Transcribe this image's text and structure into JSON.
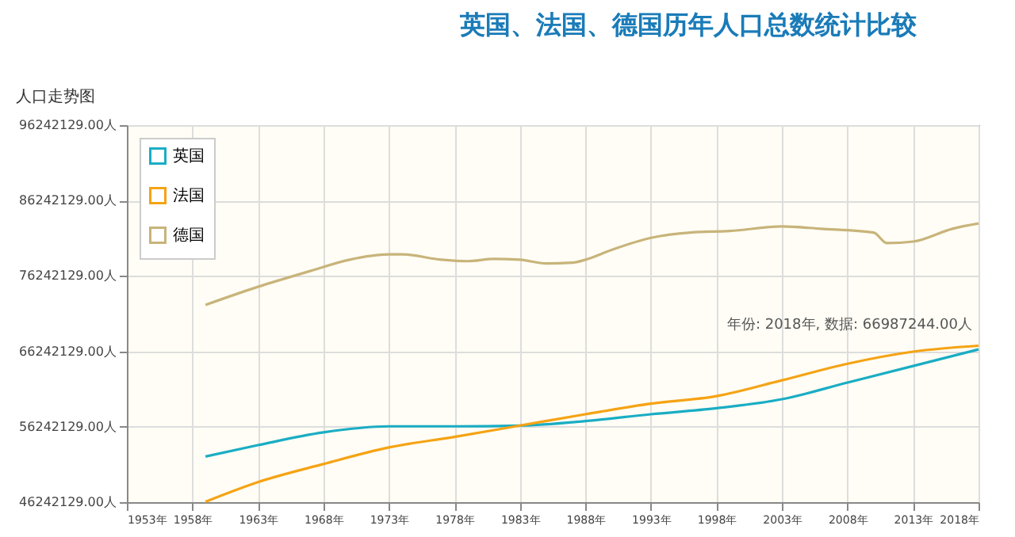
{
  "chart_data": {
    "type": "line",
    "title": "英国、法国、德国历年人口总数统计比较",
    "subtitle": "人口走势图",
    "x": [
      1959,
      1963,
      1968,
      1973,
      1978,
      1983,
      1988,
      1993,
      1998,
      2003,
      2008,
      2013,
      2018
    ],
    "series": [
      {
        "name": "英国",
        "color": "#1aadc4",
        "values": [
          52300000,
          53800000,
          55500000,
          56300000,
          56300000,
          56400000,
          57000000,
          57900000,
          58700000,
          59900000,
          62100000,
          64300000,
          66500000
        ]
      },
      {
        "name": "法国",
        "color": "#f5a314",
        "values": [
          46300000,
          48900000,
          51300000,
          53500000,
          54900000,
          56400000,
          57900000,
          59300000,
          60300000,
          62400000,
          64600000,
          66200000,
          66987244
        ]
      },
      {
        "name": "德国",
        "color": "#c8b47a",
        "x": [
          1959,
          1963,
          1967,
          1970,
          1973,
          1974,
          1977,
          1979,
          1981,
          1983,
          1985,
          1987,
          1988,
          1990,
          1993,
          1996,
          1999,
          2003,
          2006,
          2010,
          2011,
          2013,
          2016,
          2018
        ],
        "values": [
          72400000,
          74800000,
          76900000,
          78400000,
          79100000,
          79100000,
          78400000,
          78200000,
          78500000,
          78400000,
          77900000,
          78000000,
          78400000,
          79700000,
          81300000,
          82000000,
          82200000,
          82800000,
          82500000,
          82000000,
          80600000,
          80800000,
          82500000,
          83200000
        ]
      }
    ],
    "xlim": [
      1953,
      2018
    ],
    "xticks": [
      {
        "value": 1953,
        "label": "1953年"
      },
      {
        "value": 1958,
        "label": "1958年"
      },
      {
        "value": 1963,
        "label": "1963年"
      },
      {
        "value": 1968,
        "label": "1968年"
      },
      {
        "value": 1973,
        "label": "1973年"
      },
      {
        "value": 1978,
        "label": "1978年"
      },
      {
        "value": 1983,
        "label": "1983年"
      },
      {
        "value": 1988,
        "label": "1988年"
      },
      {
        "value": 1993,
        "label": "1993年"
      },
      {
        "value": 1998,
        "label": "1998年"
      },
      {
        "value": 2003,
        "label": "2003年"
      },
      {
        "value": 2008,
        "label": "2008年"
      },
      {
        "value": 2013,
        "label": "2013年"
      },
      {
        "value": 2018,
        "label": "2018年"
      }
    ],
    "ylim": [
      46242129,
      96242129
    ],
    "yticks": [
      {
        "value": 46242129,
        "label": "46242129.00人"
      },
      {
        "value": 56242129,
        "label": "56242129.00人"
      },
      {
        "value": 66242129,
        "label": "66242129.00人"
      },
      {
        "value": 76242129,
        "label": "76242129.00人"
      },
      {
        "value": 86242129,
        "label": "86242129.00人"
      },
      {
        "value": 96242129,
        "label": "96242129.00人"
      }
    ],
    "annotations": [
      {
        "text": "年份: 2018年, 数据: 66987244.00人",
        "x": 2018,
        "y": 66987244
      }
    ],
    "grid": true,
    "legend": "top left",
    "marker": "none",
    "line_style": "solid"
  }
}
